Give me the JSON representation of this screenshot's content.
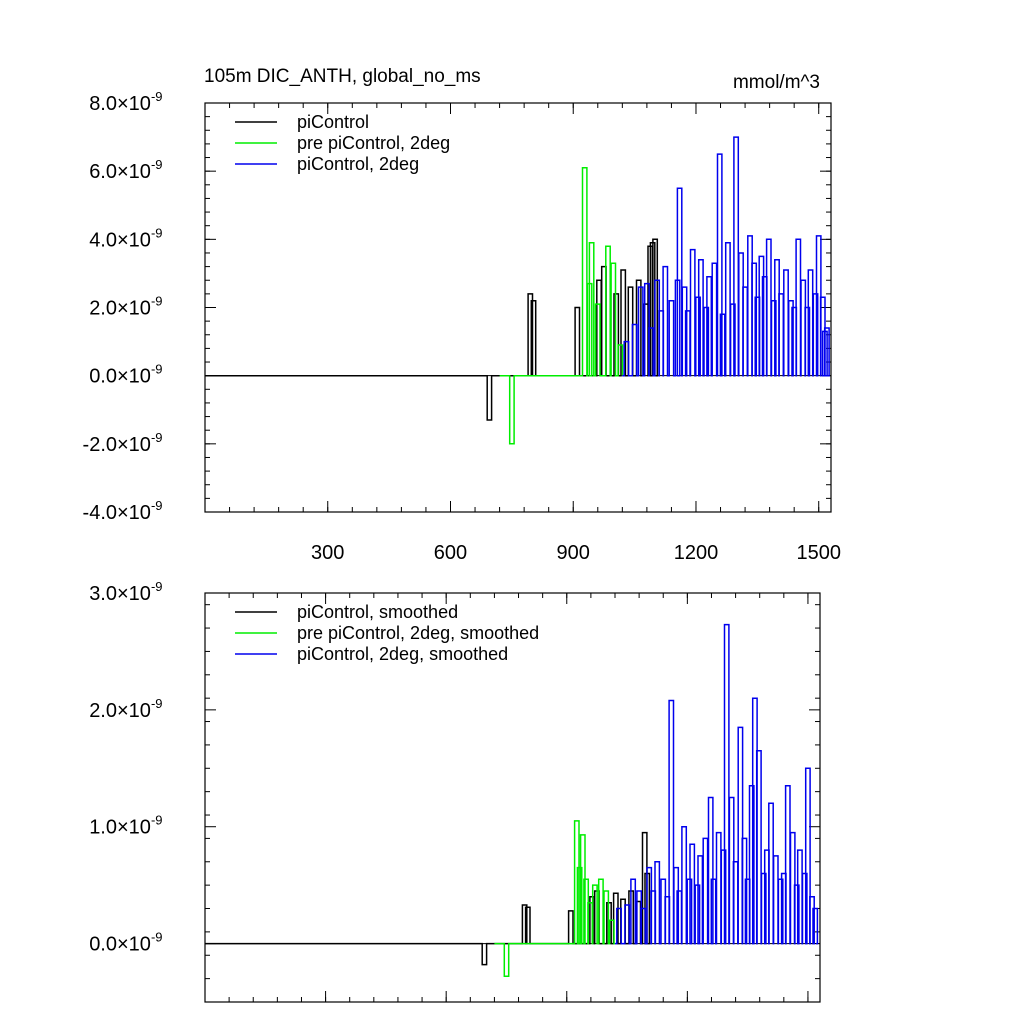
{
  "chart_data": [
    {
      "type": "line",
      "title": "105m DIC_ANTH, global_no_ms",
      "units": "mmol/m^3",
      "xlim": [
        0,
        1530
      ],
      "ylim": [
        -4e-09,
        8e-09
      ],
      "y_exponent_label": "×10",
      "y_exponent": "-9",
      "yticks": [
        -4,
        -2,
        0,
        2,
        4,
        6,
        8
      ],
      "yticklabels": [
        "-4.0",
        "-2.0",
        "0.0",
        "2.0",
        "4.0",
        "6.0",
        "8.0"
      ],
      "xticks": [
        300,
        600,
        900,
        1200,
        1500
      ],
      "xticklabels": [
        "300",
        "600",
        "900",
        "1200",
        "1500"
      ],
      "legend_position": "top-left",
      "series": [
        {
          "name": "piControl",
          "color": "#000000",
          "x_range": [
            0,
            1100
          ],
          "zero_before": 690,
          "spikes": [
            [
              695,
              -1.3
            ],
            [
              795,
              2.4
            ],
            [
              803,
              2.2
            ],
            [
              910,
              2.0
            ],
            [
              963,
              2.8
            ],
            [
              975,
              3.2
            ],
            [
              1005,
              2.4
            ],
            [
              1022,
              3.1
            ],
            [
              1040,
              2.6
            ],
            [
              1060,
              2.8
            ],
            [
              1078,
              2.1
            ],
            [
              1088,
              3.8
            ],
            [
              1094,
              3.9
            ],
            [
              1100,
              4.0
            ]
          ]
        },
        {
          "name": "pre piControl, 2deg",
          "color": "#00ee00",
          "x_range": [
            720,
            1020
          ],
          "zero_before": 745,
          "spikes": [
            [
              750,
              -2.0
            ],
            [
              928,
              6.1
            ],
            [
              940,
              2.7
            ],
            [
              945,
              3.9
            ],
            [
              960,
              2.1
            ],
            [
              985,
              3.8
            ],
            [
              998,
              3.3
            ],
            [
              1015,
              0.9
            ]
          ]
        },
        {
          "name": "piControl, 2deg",
          "color": "#0000ee",
          "x_range": [
            1020,
            1520
          ],
          "zero_before": 1025,
          "spikes": [
            [
              1030,
              1.0
            ],
            [
              1050,
              1.5
            ],
            [
              1065,
              2.6
            ],
            [
              1080,
              2.7
            ],
            [
              1090,
              1.4
            ],
            [
              1105,
              2.8
            ],
            [
              1115,
              1.9
            ],
            [
              1125,
              3.2
            ],
            [
              1140,
              2.2
            ],
            [
              1155,
              2.8
            ],
            [
              1160,
              5.5
            ],
            [
              1172,
              2.6
            ],
            [
              1180,
              1.9
            ],
            [
              1192,
              3.7
            ],
            [
              1205,
              2.3
            ],
            [
              1212,
              3.4
            ],
            [
              1225,
              2.0
            ],
            [
              1232,
              2.9
            ],
            [
              1245,
              3.3
            ],
            [
              1258,
              6.5
            ],
            [
              1265,
              1.8
            ],
            [
              1278,
              3.9
            ],
            [
              1290,
              2.1
            ],
            [
              1298,
              7.0
            ],
            [
              1310,
              3.6
            ],
            [
              1320,
              2.6
            ],
            [
              1332,
              4.1
            ],
            [
              1342,
              3.3
            ],
            [
              1350,
              2.3
            ],
            [
              1360,
              3.5
            ],
            [
              1368,
              2.9
            ],
            [
              1378,
              4.0
            ],
            [
              1390,
              2.2
            ],
            [
              1398,
              3.4
            ],
            [
              1408,
              2.4
            ],
            [
              1420,
              3.1
            ],
            [
              1432,
              2.2
            ],
            [
              1440,
              2.0
            ],
            [
              1450,
              4.0
            ],
            [
              1462,
              2.8
            ],
            [
              1472,
              2.0
            ],
            [
              1480,
              3.1
            ],
            [
              1492,
              2.4
            ],
            [
              1500,
              4.1
            ],
            [
              1510,
              2.3
            ],
            [
              1515,
              1.3
            ],
            [
              1520,
              1.4
            ]
          ]
        }
      ]
    },
    {
      "type": "line",
      "xlim": [
        0,
        1530
      ],
      "ylim": [
        -5e-10,
        3e-09
      ],
      "y_exponent_label": "×10",
      "y_exponent": "-9",
      "yticks": [
        0,
        1,
        2,
        3
      ],
      "yticklabels": [
        "0.0",
        "1.0",
        "2.0",
        "3.0"
      ],
      "legend_position": "top-left",
      "series": [
        {
          "name": "piControl, smoothed",
          "color": "#000000",
          "x_range": [
            0,
            1100
          ],
          "zero_before": 690,
          "spikes": [
            [
              695,
              -0.18
            ],
            [
              795,
              0.33
            ],
            [
              803,
              0.31
            ],
            [
              910,
              0.28
            ],
            [
              963,
              0.4
            ],
            [
              975,
              0.45
            ],
            [
              1005,
              0.35
            ],
            [
              1022,
              0.43
            ],
            [
              1040,
              0.38
            ],
            [
              1060,
              0.45
            ],
            [
              1078,
              0.36
            ],
            [
              1094,
              0.95
            ],
            [
              1100,
              0.6
            ]
          ]
        },
        {
          "name": "pre piControl, 2deg, smoothed",
          "color": "#00ee00",
          "x_range": [
            720,
            1020
          ],
          "zero_before": 745,
          "spikes": [
            [
              750,
              -0.28
            ],
            [
              925,
              1.05
            ],
            [
              932,
              0.65
            ],
            [
              940,
              0.93
            ],
            [
              948,
              0.55
            ],
            [
              958,
              0.35
            ],
            [
              970,
              0.5
            ],
            [
              985,
              0.55
            ],
            [
              998,
              0.45
            ],
            [
              1012,
              0.2
            ]
          ]
        },
        {
          "name": "piControl, 2deg, smoothed",
          "color": "#0000ee",
          "x_range": [
            1020,
            1520
          ],
          "zero_before": 1025,
          "spikes": [
            [
              1030,
              0.3
            ],
            [
              1050,
              0.33
            ],
            [
              1065,
              0.55
            ],
            [
              1080,
              0.45
            ],
            [
              1090,
              0.3
            ],
            [
              1105,
              0.65
            ],
            [
              1115,
              0.45
            ],
            [
              1125,
              0.7
            ],
            [
              1140,
              0.55
            ],
            [
              1150,
              0.4
            ],
            [
              1160,
              2.08
            ],
            [
              1172,
              0.65
            ],
            [
              1180,
              0.45
            ],
            [
              1192,
              1.0
            ],
            [
              1205,
              0.55
            ],
            [
              1212,
              0.85
            ],
            [
              1225,
              0.5
            ],
            [
              1232,
              0.75
            ],
            [
              1245,
              0.9
            ],
            [
              1258,
              1.25
            ],
            [
              1265,
              0.55
            ],
            [
              1278,
              0.95
            ],
            [
              1290,
              0.8
            ],
            [
              1298,
              2.73
            ],
            [
              1310,
              1.25
            ],
            [
              1320,
              0.7
            ],
            [
              1332,
              1.85
            ],
            [
              1342,
              0.9
            ],
            [
              1350,
              0.55
            ],
            [
              1360,
              1.35
            ],
            [
              1368,
              2.1
            ],
            [
              1378,
              1.65
            ],
            [
              1390,
              0.6
            ],
            [
              1398,
              0.8
            ],
            [
              1408,
              1.2
            ],
            [
              1420,
              0.75
            ],
            [
              1432,
              0.55
            ],
            [
              1440,
              0.6
            ],
            [
              1450,
              1.35
            ],
            [
              1462,
              0.95
            ],
            [
              1472,
              0.5
            ],
            [
              1480,
              0.8
            ],
            [
              1492,
              0.6
            ],
            [
              1500,
              1.5
            ],
            [
              1510,
              0.4
            ],
            [
              1518,
              0.3
            ]
          ]
        }
      ]
    }
  ]
}
